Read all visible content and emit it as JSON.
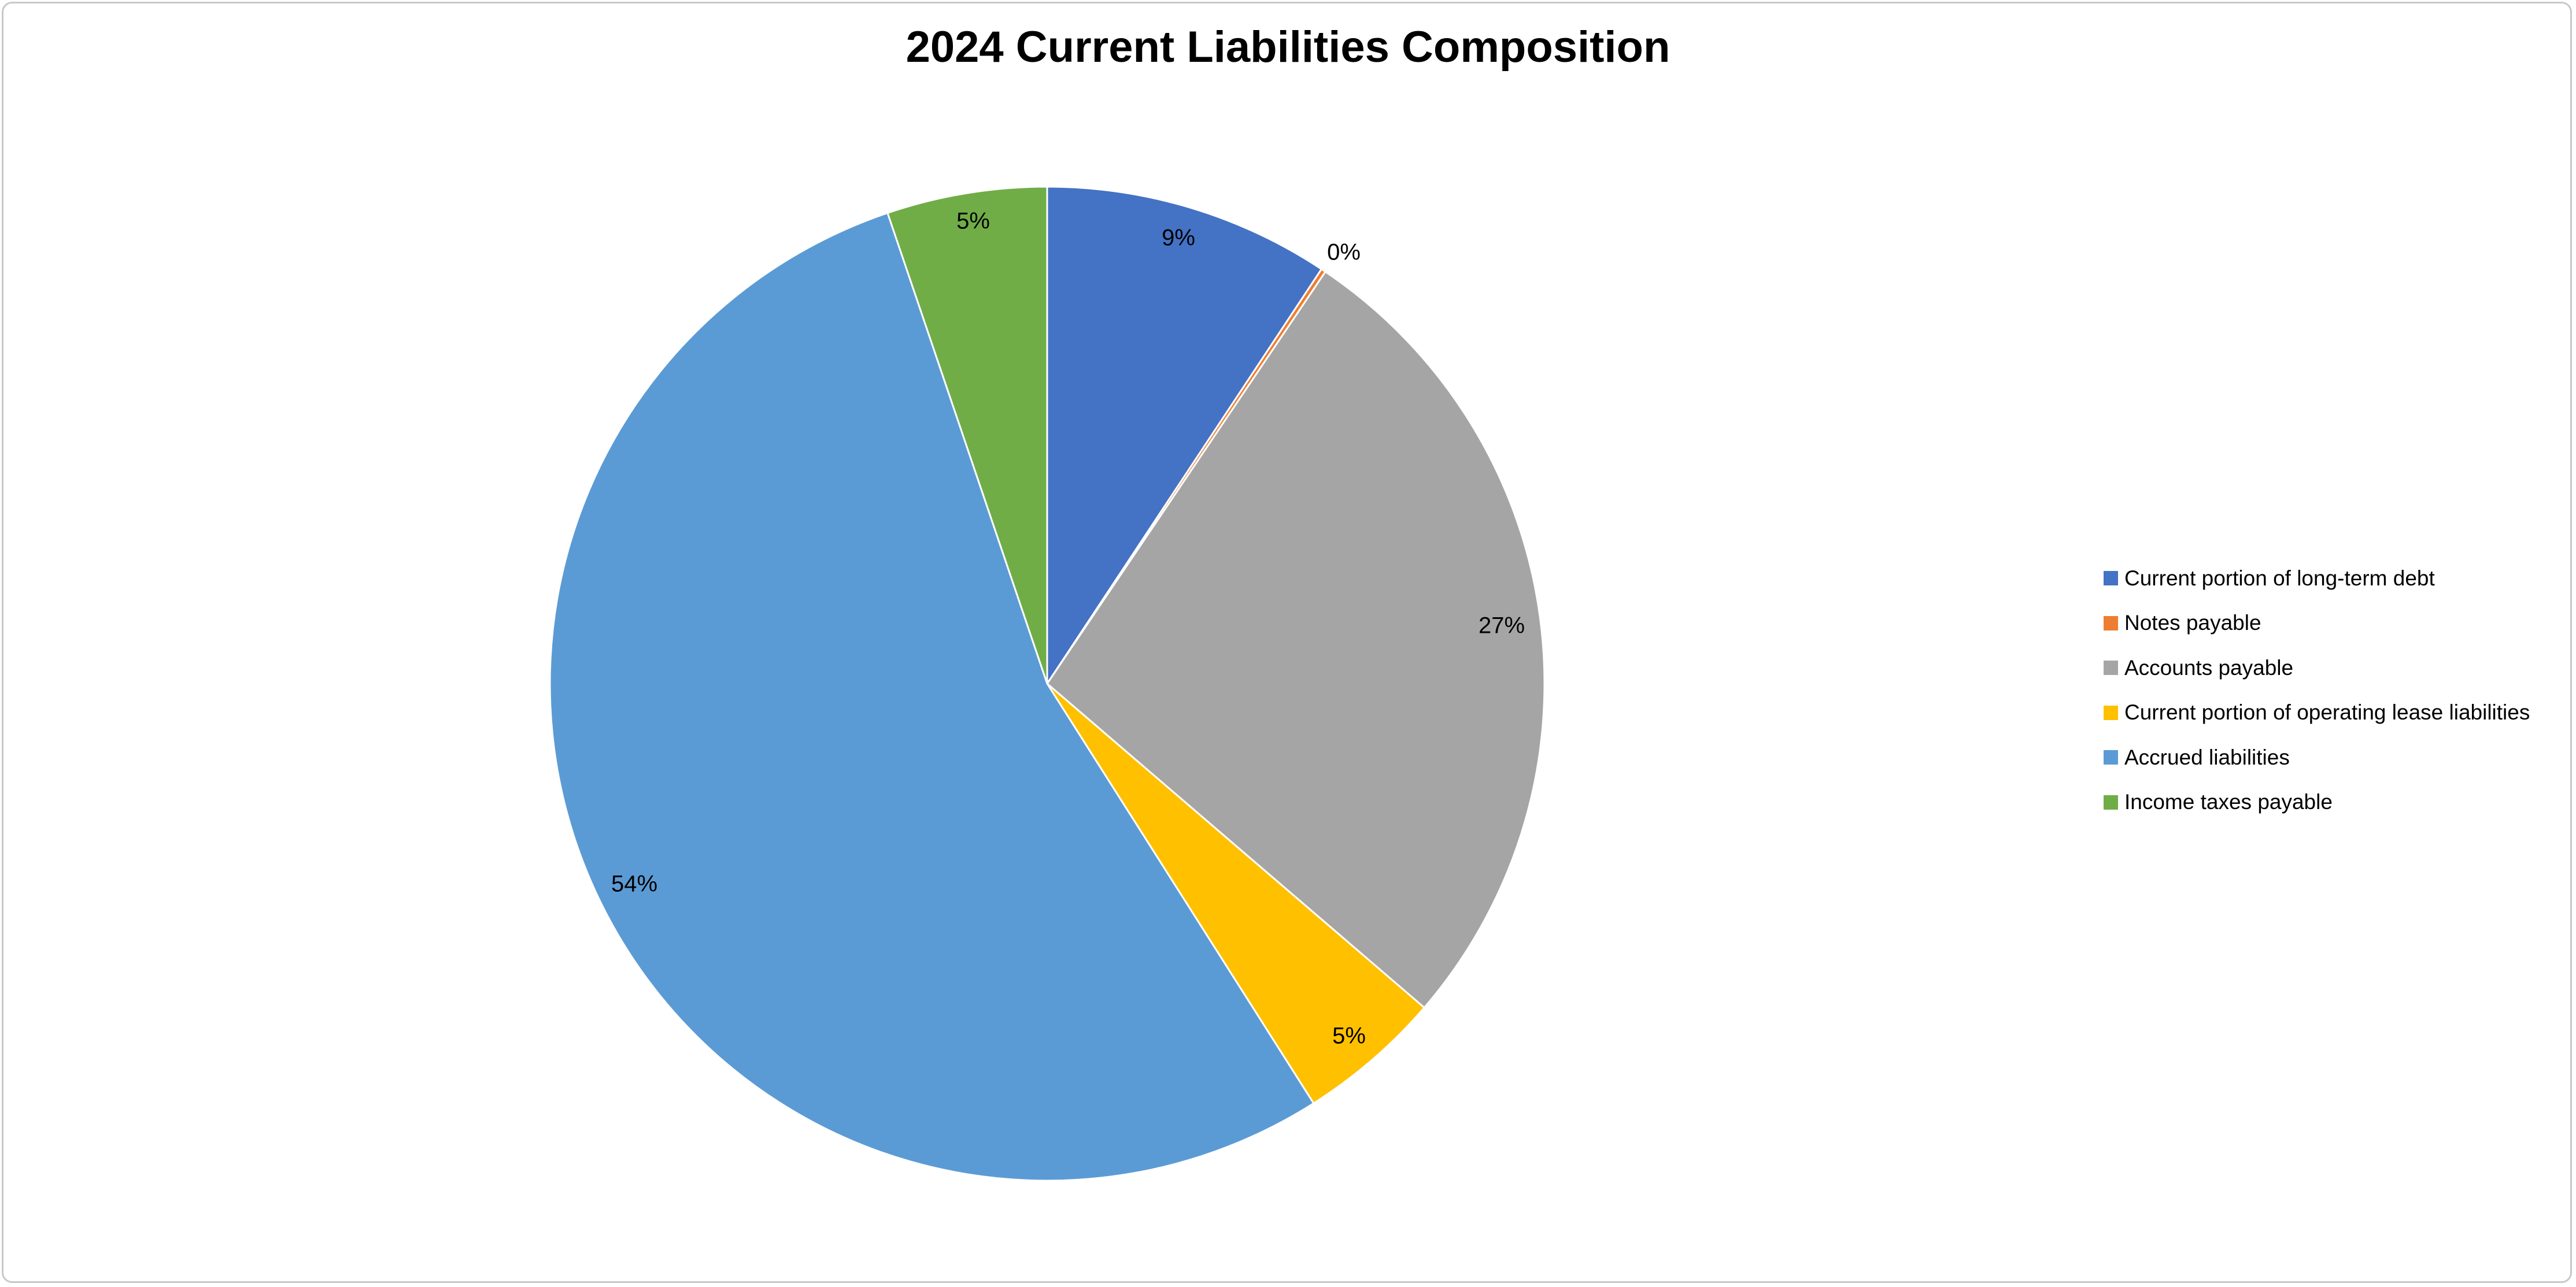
{
  "chart_data": {
    "type": "pie",
    "title": "2024 Current Liabilities Composition",
    "start_angle_deg": 0,
    "direction": "clockwise",
    "legend_position": "right",
    "slices": [
      {
        "label": "Current portion of long-term debt",
        "value": 9.3,
        "display": "9%",
        "color": "#4472C4"
      },
      {
        "label": "Notes payable",
        "value": 0.15,
        "display": "0%",
        "color": "#ED7D31"
      },
      {
        "label": "Accounts payable",
        "value": 26.85,
        "display": "27%",
        "color": "#A5A5A5"
      },
      {
        "label": "Current portion of operating lease liabilities",
        "value": 4.7,
        "display": "5%",
        "color": "#FFC000"
      },
      {
        "label": "Accrued liabilities",
        "value": 53.8,
        "display": "54%",
        "color": "#5B9BD5"
      },
      {
        "label": "Income taxes payable",
        "value": 5.2,
        "display": "5%",
        "color": "#70AD47"
      }
    ]
  }
}
